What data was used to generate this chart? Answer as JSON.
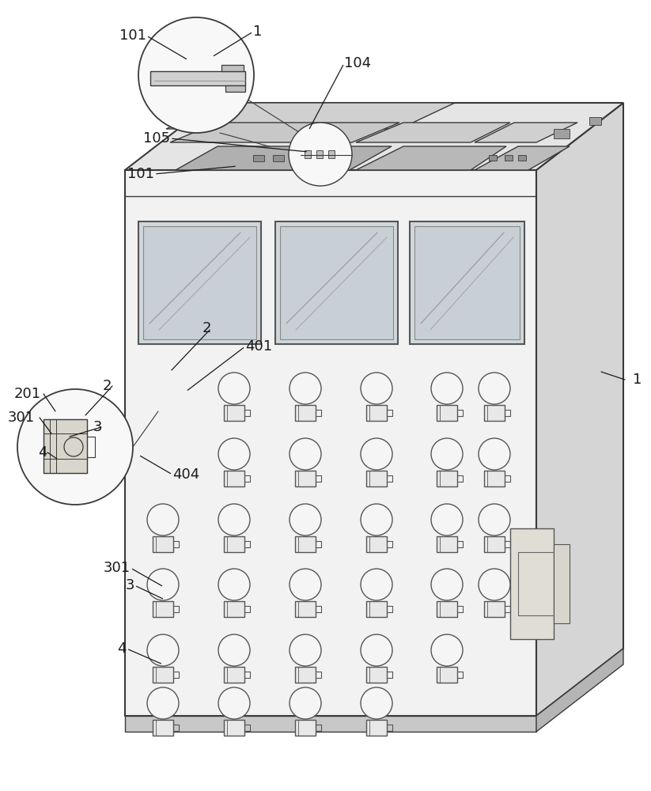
{
  "bg_color": "#ffffff",
  "lc": "#3a3a3a",
  "lw": 1.0,
  "lw2": 1.5,
  "fs": 13,
  "front_face": {
    "fc": "#f2f2f2"
  },
  "right_face": {
    "fc": "#d5d5d5"
  },
  "top_face": {
    "fc": "#e5e5e5"
  },
  "base_front": {
    "fc": "#c8c8c8"
  },
  "base_right": {
    "fc": "#b5b5b5"
  },
  "win_fc": "#d8dfe3",
  "win_shadow": "#909090",
  "connector_edge": "#555555",
  "connector_fc": "#e8e8e8",
  "handle_fc": "#e0ddd5",
  "handle_edge": "#555555",
  "zoom_fc": "#f8f8f8",
  "top_recess_fc": "#c5c5c5",
  "top_slot_fc": "#888888"
}
